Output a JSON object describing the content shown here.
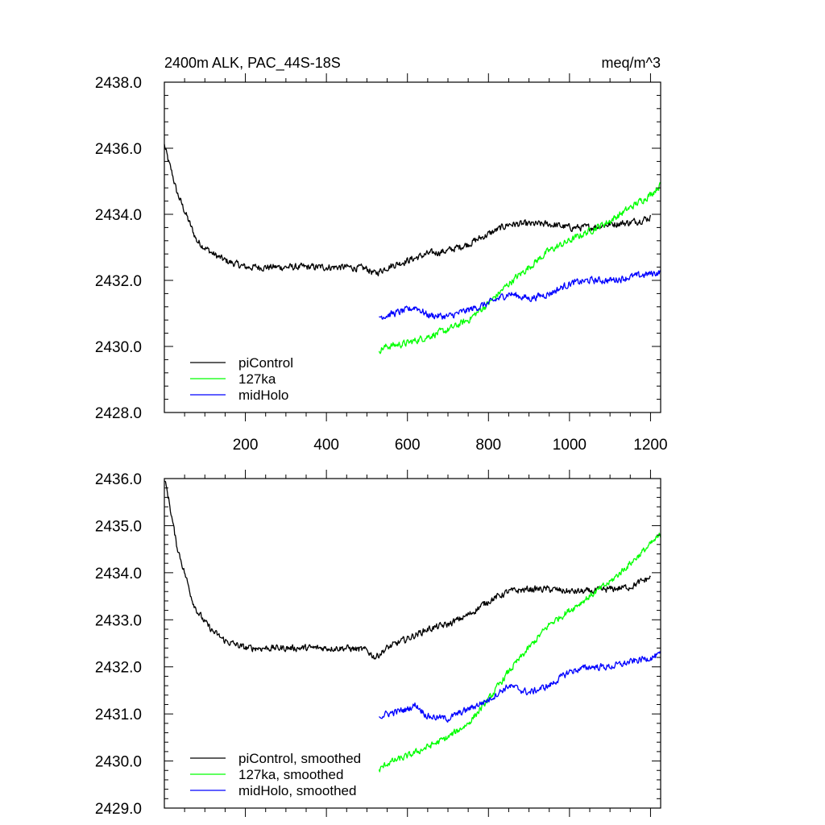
{
  "chart_data": [
    {
      "type": "line",
      "title": "2400m ALK, PAC_44S-18S",
      "units": "meq/m^3",
      "xlim": [
        0,
        1225
      ],
      "ylim": [
        2428.0,
        2438.0
      ],
      "x_major_ticks": [
        200,
        400,
        600,
        800,
        1000,
        1200
      ],
      "x_tick_labels": [
        "200",
        "400",
        "600",
        "800",
        "1000",
        "1200"
      ],
      "y_major_ticks": [
        2428.0,
        2430.0,
        2432.0,
        2434.0,
        2436.0,
        2438.0
      ],
      "y_tick_labels": [
        "2428.0",
        "2430.0",
        "2432.0",
        "2434.0",
        "2436.0",
        "2438.0"
      ],
      "legend": [
        "piControl",
        "127ka",
        "midHolo"
      ],
      "legend_position": "bottom-left",
      "series": [
        {
          "name": "piControl",
          "color": "#000000",
          "x": [
            0,
            10,
            20,
            30,
            40,
            50,
            60,
            70,
            80,
            100,
            120,
            150,
            200,
            250,
            300,
            350,
            400,
            450,
            500,
            520,
            550,
            600,
            650,
            700,
            750,
            800,
            850,
            900,
            950,
            1000,
            1050,
            1100,
            1150,
            1200
          ],
          "y": [
            2436.1,
            2435.6,
            2435.2,
            2434.7,
            2434.4,
            2434.1,
            2433.8,
            2433.5,
            2433.2,
            2433.0,
            2432.8,
            2432.6,
            2432.4,
            2432.4,
            2432.4,
            2432.4,
            2432.4,
            2432.4,
            2432.35,
            2432.2,
            2432.4,
            2432.6,
            2432.8,
            2432.9,
            2433.1,
            2433.4,
            2433.7,
            2433.7,
            2433.7,
            2433.6,
            2433.6,
            2433.7,
            2433.75,
            2433.9
          ]
        },
        {
          "name": "127ka",
          "color": "#00ff00",
          "x": [
            530,
            550,
            600,
            650,
            700,
            750,
            800,
            850,
            900,
            950,
            1000,
            1050,
            1100,
            1150,
            1200,
            1225
          ],
          "y": [
            2429.9,
            2430.0,
            2430.1,
            2430.3,
            2430.5,
            2430.8,
            2431.3,
            2431.9,
            2432.4,
            2432.9,
            2433.2,
            2433.5,
            2433.8,
            2434.2,
            2434.6,
            2434.9
          ]
        },
        {
          "name": "midHolo",
          "color": "#0000ff",
          "x": [
            530,
            550,
            600,
            620,
            650,
            700,
            750,
            800,
            850,
            900,
            950,
            1000,
            1050,
            1100,
            1150,
            1200,
            1225
          ],
          "y": [
            2430.9,
            2430.95,
            2431.1,
            2431.2,
            2430.95,
            2430.9,
            2431.1,
            2431.3,
            2431.6,
            2431.45,
            2431.6,
            2431.9,
            2432.0,
            2432.0,
            2432.1,
            2432.2,
            2432.25
          ]
        }
      ]
    },
    {
      "type": "line",
      "title": "",
      "xlim": [
        0,
        1225
      ],
      "ylim": [
        2429.0,
        2436.0
      ],
      "x_major_ticks": [
        200,
        400,
        600,
        800,
        1000,
        1200
      ],
      "y_major_ticks": [
        2429.0,
        2430.0,
        2431.0,
        2432.0,
        2433.0,
        2434.0,
        2435.0,
        2436.0
      ],
      "y_tick_labels": [
        "2429.0",
        "2430.0",
        "2431.0",
        "2432.0",
        "2433.0",
        "2434.0",
        "2435.0",
        "2436.0"
      ],
      "legend": [
        "piControl, smoothed",
        "127ka, smoothed",
        "midHolo, smoothed"
      ],
      "legend_position": "bottom-left",
      "series": [
        {
          "name": "piControl, smoothed",
          "color": "#000000",
          "x": [
            0,
            10,
            20,
            30,
            40,
            50,
            60,
            70,
            80,
            100,
            120,
            150,
            200,
            250,
            300,
            350,
            400,
            450,
            500,
            520,
            550,
            600,
            650,
            700,
            750,
            800,
            850,
            900,
            950,
            1000,
            1050,
            1100,
            1150,
            1200
          ],
          "y": [
            2436.0,
            2435.6,
            2435.1,
            2434.6,
            2434.3,
            2434.0,
            2433.7,
            2433.4,
            2433.2,
            2432.95,
            2432.75,
            2432.55,
            2432.4,
            2432.4,
            2432.4,
            2432.4,
            2432.4,
            2432.4,
            2432.35,
            2432.2,
            2432.4,
            2432.6,
            2432.8,
            2432.9,
            2433.1,
            2433.4,
            2433.6,
            2433.65,
            2433.65,
            2433.6,
            2433.6,
            2433.65,
            2433.7,
            2433.9
          ]
        },
        {
          "name": "127ka, smoothed",
          "color": "#00ff00",
          "x": [
            530,
            550,
            600,
            650,
            700,
            750,
            800,
            850,
            900,
            950,
            1000,
            1050,
            1100,
            1150,
            1200,
            1225
          ],
          "y": [
            2429.8,
            2429.95,
            2430.1,
            2430.3,
            2430.5,
            2430.8,
            2431.3,
            2431.9,
            2432.4,
            2432.9,
            2433.2,
            2433.5,
            2433.8,
            2434.2,
            2434.6,
            2434.8
          ]
        },
        {
          "name": "midHolo, smoothed",
          "color": "#0000ff",
          "x": [
            530,
            550,
            600,
            620,
            650,
            700,
            750,
            800,
            850,
            900,
            950,
            1000,
            1050,
            1100,
            1150,
            1200,
            1225
          ],
          "y": [
            2430.95,
            2431.0,
            2431.1,
            2431.2,
            2430.95,
            2430.9,
            2431.1,
            2431.3,
            2431.6,
            2431.45,
            2431.6,
            2431.9,
            2432.0,
            2432.0,
            2432.1,
            2432.2,
            2432.25
          ]
        }
      ]
    }
  ]
}
